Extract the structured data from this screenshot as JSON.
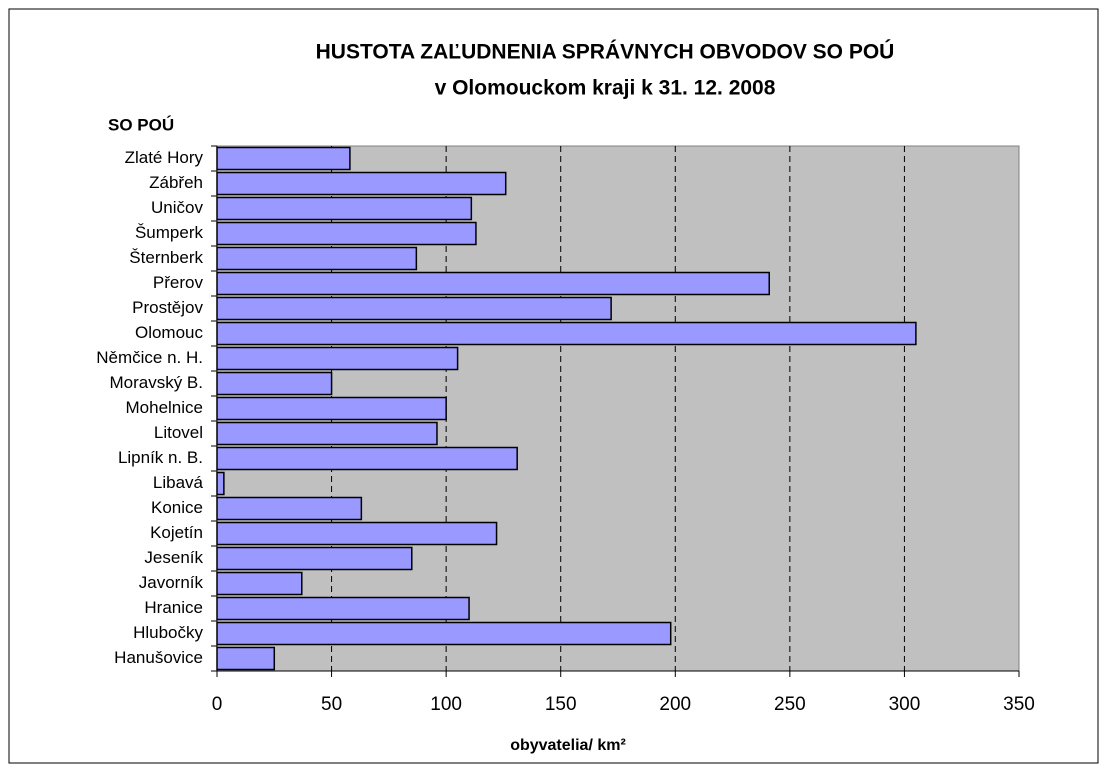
{
  "chart_data": {
    "type": "barh",
    "title": "HUSTOTA ZAĽUDNENIA SPRÁVNYCH OBVODOV SO POÚ",
    "subtitle": "v Olomouckom kraji k 31. 12. 2008",
    "y_label": "SO POÚ",
    "x_label": "obyvatelia/ km²",
    "categories": [
      "Zlaté Hory",
      "Zábřeh",
      "Uničov",
      "Šumperk",
      "Šternberk",
      "Přerov",
      "Prostějov",
      "Olomouc",
      "Němčice n. H.",
      "Moravský B.",
      "Mohelnice",
      "Litovel",
      "Lipník n. B.",
      "Libavá",
      "Konice",
      "Kojetín",
      "Jeseník",
      "Javorník",
      "Hranice",
      "Hlubočky",
      "Hanušovice"
    ],
    "values": [
      58,
      126,
      111,
      113,
      87,
      241,
      172,
      305,
      105,
      50,
      100,
      96,
      131,
      3,
      63,
      122,
      85,
      37,
      110,
      198,
      25
    ],
    "color": "#9999ff",
    "xlim": [
      0,
      350
    ],
    "xticks": [
      0,
      50,
      100,
      150,
      200,
      250,
      300,
      350
    ],
    "grid": true
  }
}
